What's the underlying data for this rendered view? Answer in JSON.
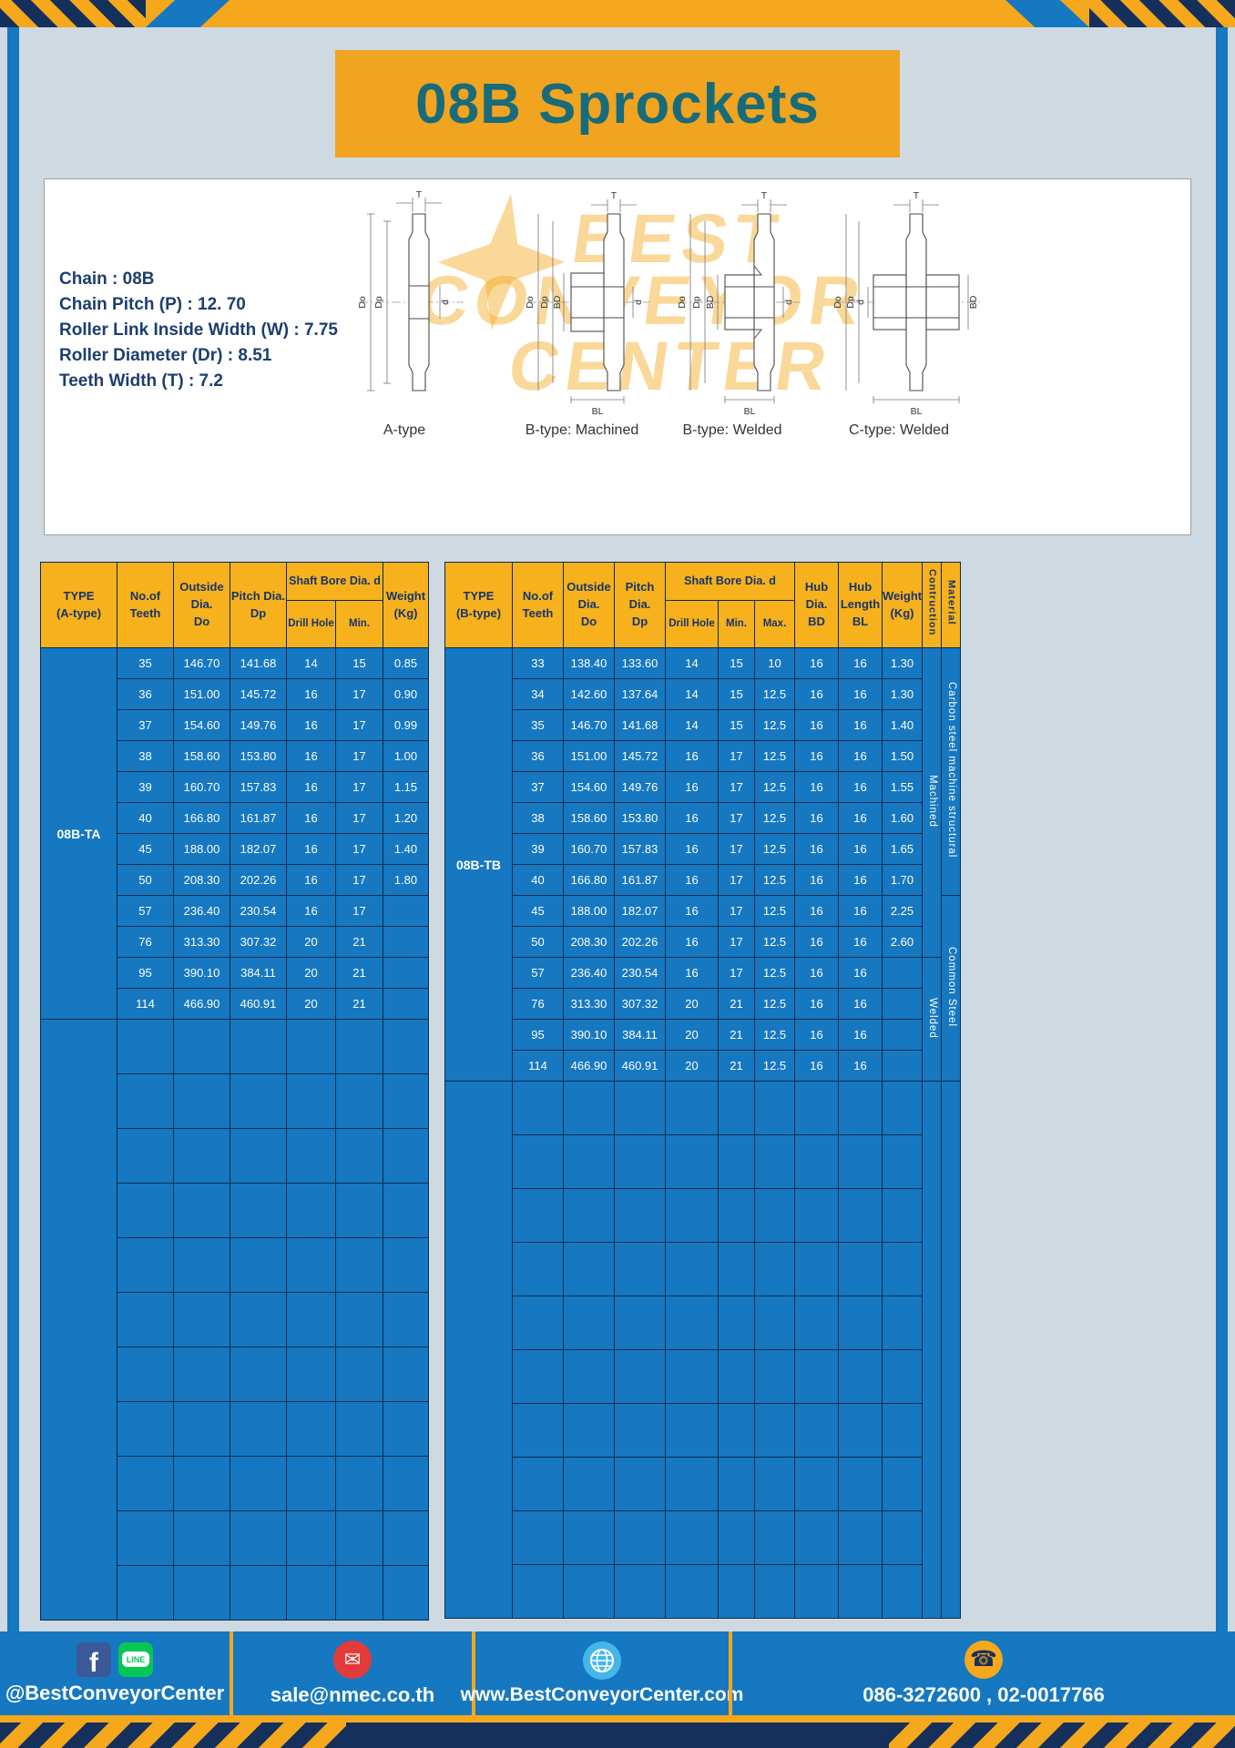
{
  "title": "08B Sprockets",
  "specs": {
    "lines": [
      "Chain : 08B",
      "Chain Pitch (P) : 12. 70",
      "Roller Link Inside Width (W) : 7.75",
      "Roller Diameter (Dr) : 8.51",
      "Teeth Width (T) : 7.2"
    ]
  },
  "drawings": {
    "watermark_lines": [
      "BEST",
      "CONVEYOR",
      "CENTER"
    ],
    "labels": [
      "A-type",
      "B-type: Machined",
      "B-type: Welded",
      "C-type: Welded"
    ],
    "dim_labels": {
      "T": "T",
      "Do": "Do",
      "Dp": "Dp",
      "d": "d",
      "BD": "BD",
      "BL": "BL"
    }
  },
  "table_a": {
    "type_label": "08B-TA",
    "header": {
      "type": "TYPE\n(A-type)",
      "teeth": "No.of\nTeeth",
      "outside": "Outside\nDia.\nDo",
      "pitch": "Pitch Dia.\nDp",
      "shaft_bore": "Shaft Bore Dia. d",
      "drill_hole": "Drill Hole",
      "min": "Min.",
      "weight": "Weight\n(Kg)"
    },
    "rows": [
      [
        "35",
        "146.70",
        "141.68",
        "14",
        "15",
        "0.85"
      ],
      [
        "36",
        "151.00",
        "145.72",
        "16",
        "17",
        "0.90"
      ],
      [
        "37",
        "154.60",
        "149.76",
        "16",
        "17",
        "0.99"
      ],
      [
        "38",
        "158.60",
        "153.80",
        "16",
        "17",
        "1.00"
      ],
      [
        "39",
        "160.70",
        "157.83",
        "16",
        "17",
        "1.15"
      ],
      [
        "40",
        "166.80",
        "161.87",
        "16",
        "17",
        "1.20"
      ],
      [
        "45",
        "188.00",
        "182.07",
        "16",
        "17",
        "1.40"
      ],
      [
        "50",
        "208.30",
        "202.26",
        "16",
        "17",
        "1.80"
      ],
      [
        "57",
        "236.40",
        "230.54",
        "16",
        "17",
        ""
      ],
      [
        "76",
        "313.30",
        "307.32",
        "20",
        "21",
        ""
      ],
      [
        "95",
        "390.10",
        "384.11",
        "20",
        "21",
        ""
      ],
      [
        "114",
        "466.90",
        "460.91",
        "20",
        "21",
        ""
      ]
    ],
    "empty_rows": 11
  },
  "table_b": {
    "type_label": "08B-TB",
    "header": {
      "type": "TYPE\n(B-type)",
      "teeth": "No.of\nTeeth",
      "outside": "Outside\nDia.\nDo",
      "pitch": "Pitch Dia.\nDp",
      "shaft_bore": "Shaft Bore Dia. d",
      "drill_hole": "Drill Hole",
      "min": "Min.",
      "max": "Max.",
      "hub_dia": "Hub Dia.\nBD",
      "hub_length": "Hub\nLength\nBL",
      "weight": "Weight\n(Kg)",
      "construction": "Contruction",
      "material": "Material"
    },
    "rows": [
      [
        "33",
        "138.40",
        "133.60",
        "14",
        "15",
        "10",
        "16",
        "16",
        "1.30"
      ],
      [
        "34",
        "142.60",
        "137.64",
        "14",
        "15",
        "12.5",
        "16",
        "16",
        "1.30"
      ],
      [
        "35",
        "146.70",
        "141.68",
        "14",
        "15",
        "12.5",
        "16",
        "16",
        "1.40"
      ],
      [
        "36",
        "151.00",
        "145.72",
        "16",
        "17",
        "12.5",
        "16",
        "16",
        "1.50"
      ],
      [
        "37",
        "154.60",
        "149.76",
        "16",
        "17",
        "12.5",
        "16",
        "16",
        "1.55"
      ],
      [
        "38",
        "158.60",
        "153.80",
        "16",
        "17",
        "12.5",
        "16",
        "16",
        "1.60"
      ],
      [
        "39",
        "160.70",
        "157.83",
        "16",
        "17",
        "12.5",
        "16",
        "16",
        "1.65"
      ],
      [
        "40",
        "166.80",
        "161.87",
        "16",
        "17",
        "12.5",
        "16",
        "16",
        "1.70"
      ],
      [
        "45",
        "188.00",
        "182.07",
        "16",
        "17",
        "12.5",
        "16",
        "16",
        "2.25"
      ],
      [
        "50",
        "208.30",
        "202.26",
        "16",
        "17",
        "12.5",
        "16",
        "16",
        "2.60"
      ],
      [
        "57",
        "236.40",
        "230.54",
        "16",
        "17",
        "12.5",
        "16",
        "16",
        ""
      ],
      [
        "76",
        "313.30",
        "307.32",
        "20",
        "21",
        "12.5",
        "16",
        "16",
        ""
      ],
      [
        "95",
        "390.10",
        "384.11",
        "20",
        "21",
        "12.5",
        "16",
        "16",
        ""
      ],
      [
        "114",
        "466.90",
        "460.91",
        "20",
        "21",
        "12.5",
        "16",
        "16",
        ""
      ]
    ],
    "construction_groups": [
      {
        "label": "Machined",
        "span": 10
      },
      {
        "label": "Welded",
        "span": 4
      }
    ],
    "material_groups": [
      {
        "label": "Carbon steel  machine  structural",
        "span": 8
      },
      {
        "label": "Common  Steel",
        "span": 6
      }
    ],
    "empty_rows": 10
  },
  "footer": {
    "facebook_glyph": "f",
    "line_label": "LINE",
    "facebook_handle": "@BestConveyorCenter",
    "mail_glyph": "✉",
    "email": "sale@nmec.co.th",
    "website": "www.BestConveyorCenter.com",
    "phone_glyph": "☎",
    "phone": "086-3272600 , 02-0017766"
  }
}
